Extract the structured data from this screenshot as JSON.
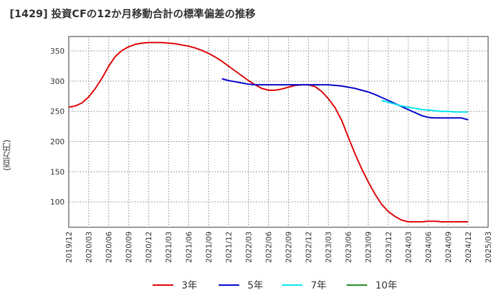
{
  "title": "[1429]  投資CFの12か月移動合計の標準偏差の推移",
  "ylabel": "(百万円)",
  "chart_data": {
    "type": "line",
    "title": "[1429]  投資CFの12か月移動合計の標準偏差の推移",
    "xlabel": "",
    "ylabel": "(百万円)",
    "ylim": [
      58,
      374
    ],
    "yticks": [
      100,
      150,
      200,
      250,
      300,
      350
    ],
    "xlim": [
      "2019-12",
      "2025-03"
    ],
    "xticks": [
      "2019/12",
      "2020/03",
      "2020/06",
      "2020/09",
      "2020/12",
      "2021/03",
      "2021/06",
      "2021/09",
      "2021/12",
      "2022/03",
      "2022/06",
      "2022/09",
      "2022/12",
      "2023/03",
      "2023/06",
      "2023/09",
      "2023/12",
      "2024/03",
      "2024/06",
      "2024/09",
      "2024/12",
      "2025/03"
    ],
    "grid": true,
    "legend_position": "bottom",
    "series": [
      {
        "name": "3年",
        "color": "#dd0000",
        "points": [
          [
            "2019-12",
            257
          ],
          [
            "2020-01",
            259
          ],
          [
            "2020-02",
            264
          ],
          [
            "2020-03",
            274
          ],
          [
            "2020-04",
            288
          ],
          [
            "2020-05",
            305
          ],
          [
            "2020-06",
            325
          ],
          [
            "2020-07",
            341
          ],
          [
            "2020-08",
            351
          ],
          [
            "2020-09",
            357
          ],
          [
            "2020-10",
            361
          ],
          [
            "2020-11",
            363
          ],
          [
            "2020-12",
            364
          ],
          [
            "2021-01",
            364
          ],
          [
            "2021-02",
            364
          ],
          [
            "2021-03",
            363
          ],
          [
            "2021-04",
            362
          ],
          [
            "2021-05",
            360
          ],
          [
            "2021-06",
            358
          ],
          [
            "2021-07",
            355
          ],
          [
            "2021-08",
            351
          ],
          [
            "2021-09",
            346
          ],
          [
            "2021-10",
            340
          ],
          [
            "2021-11",
            333
          ],
          [
            "2021-12",
            325
          ],
          [
            "2022-01",
            317
          ],
          [
            "2022-02",
            309
          ],
          [
            "2022-03",
            301
          ],
          [
            "2022-04",
            294
          ],
          [
            "2022-05",
            288
          ],
          [
            "2022-06",
            285
          ],
          [
            "2022-07",
            285
          ],
          [
            "2022-08",
            287
          ],
          [
            "2022-09",
            290
          ],
          [
            "2022-10",
            293
          ],
          [
            "2022-11",
            294
          ],
          [
            "2022-12",
            294
          ],
          [
            "2023-01",
            291
          ],
          [
            "2023-02",
            283
          ],
          [
            "2023-03",
            271
          ],
          [
            "2023-04",
            256
          ],
          [
            "2023-05",
            235
          ],
          [
            "2023-06",
            207
          ],
          [
            "2023-07",
            180
          ],
          [
            "2023-08",
            155
          ],
          [
            "2023-09",
            133
          ],
          [
            "2023-10",
            113
          ],
          [
            "2023-11",
            96
          ],
          [
            "2023-12",
            84
          ],
          [
            "2024-01",
            76
          ],
          [
            "2024-02",
            70
          ],
          [
            "2024-03",
            67
          ],
          [
            "2024-04",
            67
          ],
          [
            "2024-05",
            67
          ],
          [
            "2024-06",
            68
          ],
          [
            "2024-07",
            68
          ],
          [
            "2024-08",
            67
          ],
          [
            "2024-09",
            67
          ],
          [
            "2024-10",
            67
          ],
          [
            "2024-11",
            67
          ],
          [
            "2024-12",
            67
          ]
        ]
      },
      {
        "name": "5年",
        "color": "#0000cc",
        "points": [
          [
            "2021-11",
            304
          ],
          [
            "2021-12",
            301
          ],
          [
            "2022-01",
            299
          ],
          [
            "2022-02",
            297
          ],
          [
            "2022-03",
            295
          ],
          [
            "2022-04",
            294
          ],
          [
            "2022-05",
            294
          ],
          [
            "2022-06",
            294
          ],
          [
            "2022-07",
            294
          ],
          [
            "2022-08",
            294
          ],
          [
            "2022-09",
            294
          ],
          [
            "2022-10",
            294
          ],
          [
            "2022-11",
            294
          ],
          [
            "2022-12",
            294
          ],
          [
            "2023-01",
            294
          ],
          [
            "2023-02",
            294
          ],
          [
            "2023-03",
            294
          ],
          [
            "2023-04",
            293
          ],
          [
            "2023-05",
            292
          ],
          [
            "2023-06",
            290
          ],
          [
            "2023-07",
            288
          ],
          [
            "2023-08",
            285
          ],
          [
            "2023-09",
            282
          ],
          [
            "2023-10",
            278
          ],
          [
            "2023-11",
            273
          ],
          [
            "2023-12",
            268
          ],
          [
            "2024-01",
            263
          ],
          [
            "2024-02",
            258
          ],
          [
            "2024-03",
            253
          ],
          [
            "2024-04",
            248
          ],
          [
            "2024-05",
            243
          ],
          [
            "2024-06",
            240
          ],
          [
            "2024-07",
            239
          ],
          [
            "2024-08",
            239
          ],
          [
            "2024-09",
            239
          ],
          [
            "2024-10",
            239
          ],
          [
            "2024-11",
            239
          ],
          [
            "2024-12",
            236
          ]
        ]
      },
      {
        "name": "7年",
        "color": "#00e5ee",
        "points": [
          [
            "2023-11",
            268
          ],
          [
            "2023-12",
            265
          ],
          [
            "2024-01",
            262
          ],
          [
            "2024-02",
            259
          ],
          [
            "2024-03",
            257
          ],
          [
            "2024-04",
            255
          ],
          [
            "2024-05",
            253
          ],
          [
            "2024-06",
            252
          ],
          [
            "2024-07",
            251
          ],
          [
            "2024-08",
            250
          ],
          [
            "2024-09",
            250
          ],
          [
            "2024-10",
            249
          ],
          [
            "2024-11",
            249
          ],
          [
            "2024-12",
            249
          ]
        ]
      },
      {
        "name": "10年",
        "color": "#228b22",
        "points": []
      }
    ]
  }
}
